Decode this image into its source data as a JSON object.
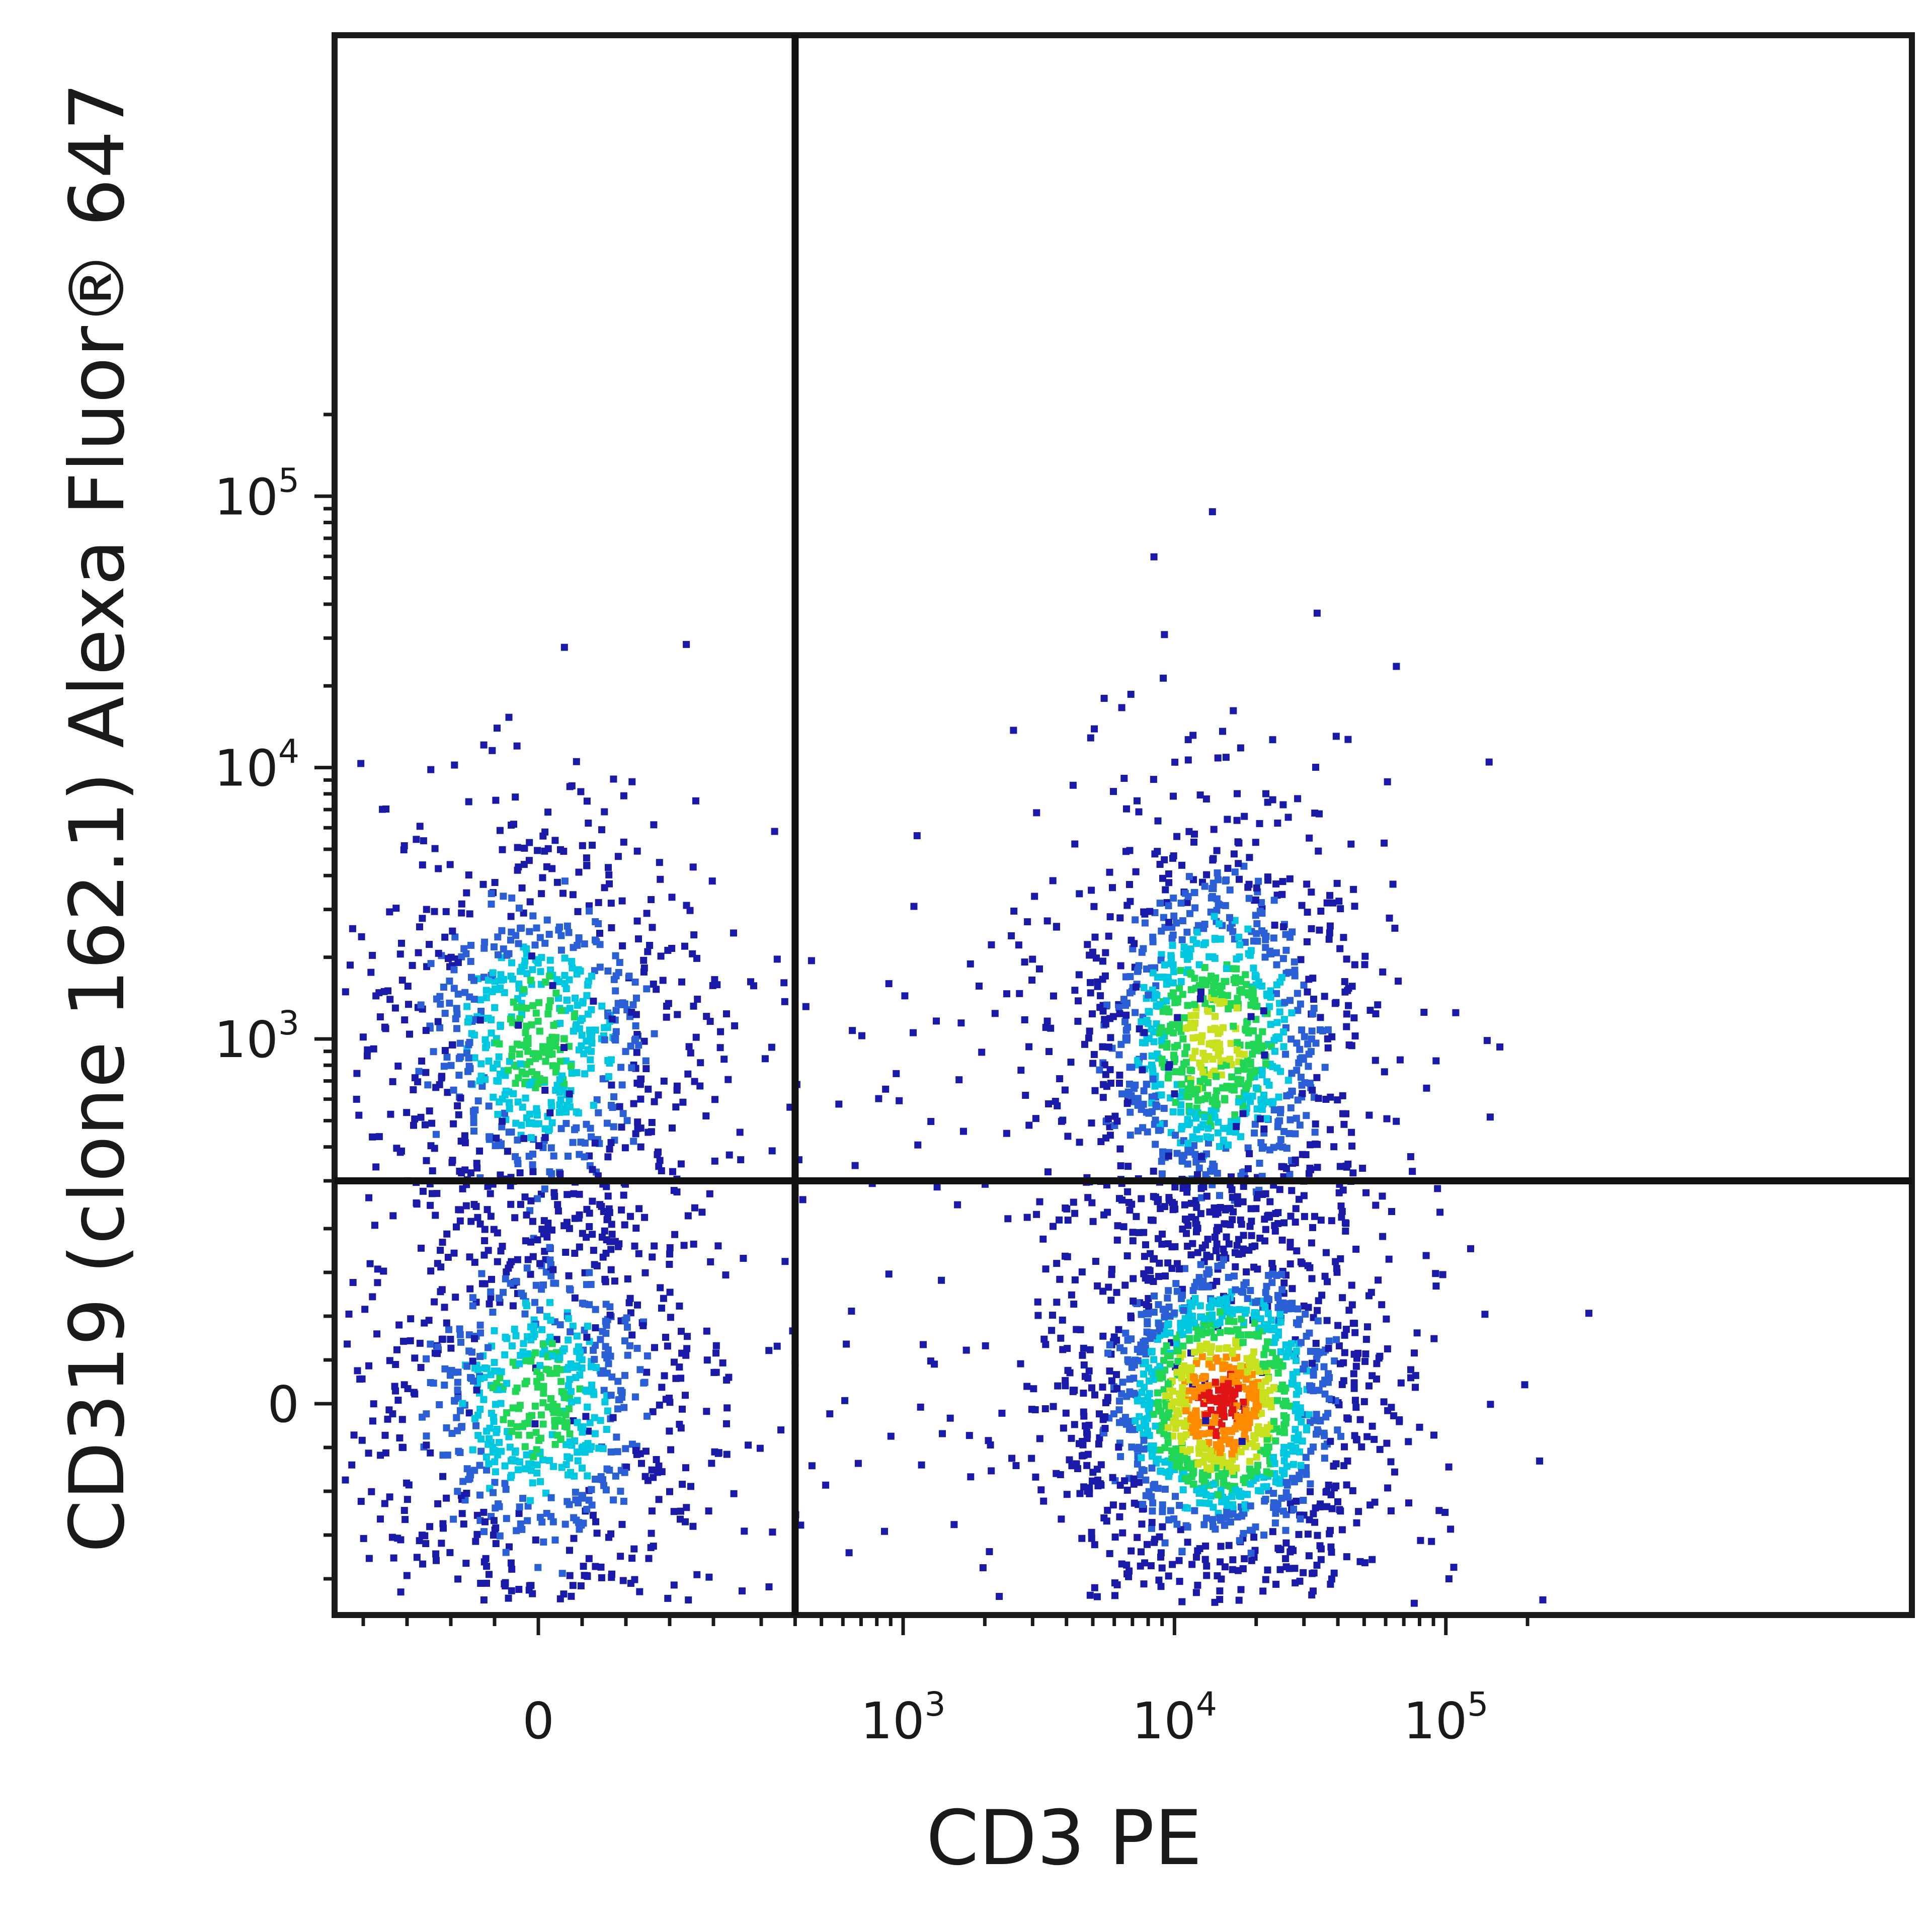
{
  "chart_data": {
    "type": "scatter",
    "subtype": "flow-cytometry-dot-plot-density-colored",
    "xlabel": "CD3 PE",
    "ylabel": "CD319 (clone 162.1) Alexa Fluor® 647",
    "x_scale": "biexponential",
    "y_scale": "biexponential",
    "x_ticks": [
      {
        "base": "0",
        "exp": ""
      },
      {
        "base": "10",
        "exp": "3"
      },
      {
        "base": "10",
        "exp": "4"
      },
      {
        "base": "10",
        "exp": "5"
      }
    ],
    "y_ticks": [
      {
        "base": "0",
        "exp": ""
      },
      {
        "base": "10",
        "exp": "3"
      },
      {
        "base": "10",
        "exp": "4"
      },
      {
        "base": "10",
        "exp": "5"
      }
    ],
    "quadrant_gate": {
      "x": 400,
      "y": 300
    },
    "density_colors": [
      "#1a1aa8",
      "#2a5fd6",
      "#00c8e0",
      "#22d655",
      "#c8e01e",
      "#ff8c00",
      "#e01414"
    ],
    "populations": [
      {
        "description": "CD3- CD319+",
        "center": {
          "x": 0,
          "y": 1000
        },
        "spread_decades": {
          "x": 0.22,
          "y": 0.3
        },
        "density": "medium"
      },
      {
        "description": "CD3- CD319-",
        "center": {
          "x": 0,
          "y": 0
        },
        "spread_decades": {
          "x": 0.22,
          "y": 0.3
        },
        "density": "medium"
      },
      {
        "description": "CD3+ CD319+",
        "center": {
          "x": 14000,
          "y": 1000
        },
        "spread_decades": {
          "x": 0.2,
          "y": 0.3
        },
        "density": "medium-high"
      },
      {
        "description": "CD3+ CD319-",
        "center": {
          "x": 15000,
          "y": 0
        },
        "spread_decades": {
          "x": 0.2,
          "y": 0.25
        },
        "density": "high"
      }
    ]
  }
}
